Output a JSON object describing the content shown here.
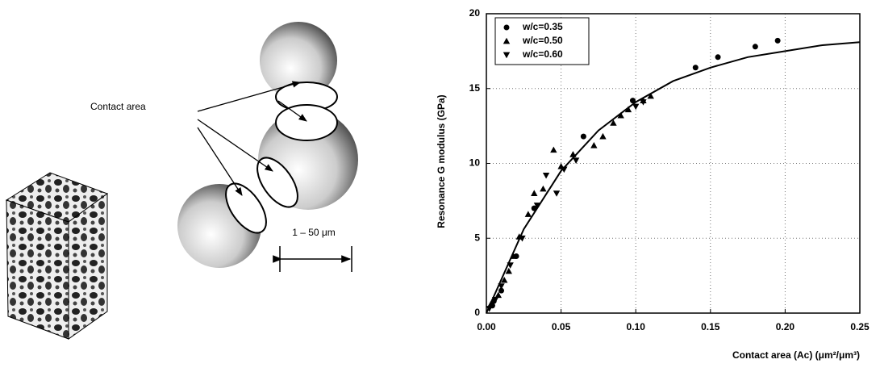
{
  "illustration": {
    "label": "Contact area",
    "scale": "1 – 50 μm"
  },
  "chart_data": {
    "type": "scatter",
    "ylabel": "Resonance G modulus (GPa)",
    "xlabel": "Contact area (Ac) (μm²/μm³)",
    "xlim": [
      0,
      0.25
    ],
    "xticks": [
      {
        "value": 0,
        "label": "0.00"
      },
      0.05,
      {
        "value": 0.1,
        "label": "0.10"
      },
      0.15,
      {
        "value": 0.2,
        "label": "0.20"
      },
      0.25
    ],
    "ylim": [
      0,
      20
    ],
    "yticks": [
      0,
      5,
      10,
      15,
      20
    ],
    "grid": true,
    "legend": "upper left",
    "series": [
      {
        "name": "w/c=0.35",
        "color": "#000000",
        "marker": "circle",
        "x": [
          0.004,
          0.005,
          0.01,
          0.02,
          0.032,
          0.065,
          0.098,
          0.14,
          0.155,
          0.18,
          0.195
        ],
        "values": [
          0.5,
          0.8,
          1.5,
          3.8,
          7.0,
          11.8,
          14.2,
          16.4,
          17.1,
          17.8,
          18.2
        ]
      },
      {
        "name": "w/c=0.50",
        "color": "#000000",
        "marker": "triangle-up",
        "x": [
          0.003,
          0.008,
          0.012,
          0.015,
          0.018,
          0.022,
          0.028,
          0.032,
          0.038,
          0.045,
          0.05,
          0.058,
          0.072,
          0.078,
          0.085,
          0.09,
          0.095,
          0.105,
          0.11
        ],
        "values": [
          0.6,
          1.2,
          2.2,
          2.8,
          3.8,
          5.1,
          6.6,
          8.0,
          8.3,
          10.9,
          9.8,
          10.6,
          11.2,
          11.8,
          12.7,
          13.2,
          13.6,
          14.2,
          14.5
        ]
      },
      {
        "name": "w/c=0.60",
        "color": "#000000",
        "marker": "triangle-down",
        "x": [
          0.002,
          0.006,
          0.01,
          0.016,
          0.024,
          0.034,
          0.04,
          0.047,
          0.052,
          0.06,
          0.1,
          0.105
        ],
        "values": [
          0.3,
          0.9,
          1.8,
          3.2,
          5.0,
          7.2,
          9.2,
          8.0,
          9.6,
          10.2,
          13.8,
          14.1
        ]
      }
    ],
    "fit_curve": {
      "color": "#000000",
      "x": [
        0,
        0.025,
        0.05,
        0.075,
        0.1,
        0.125,
        0.15,
        0.175,
        0.2,
        0.225,
        0.25
      ],
      "values": [
        0,
        5.6,
        9.5,
        12.2,
        14.1,
        15.5,
        16.4,
        17.1,
        17.5,
        17.9,
        18.1
      ]
    }
  }
}
